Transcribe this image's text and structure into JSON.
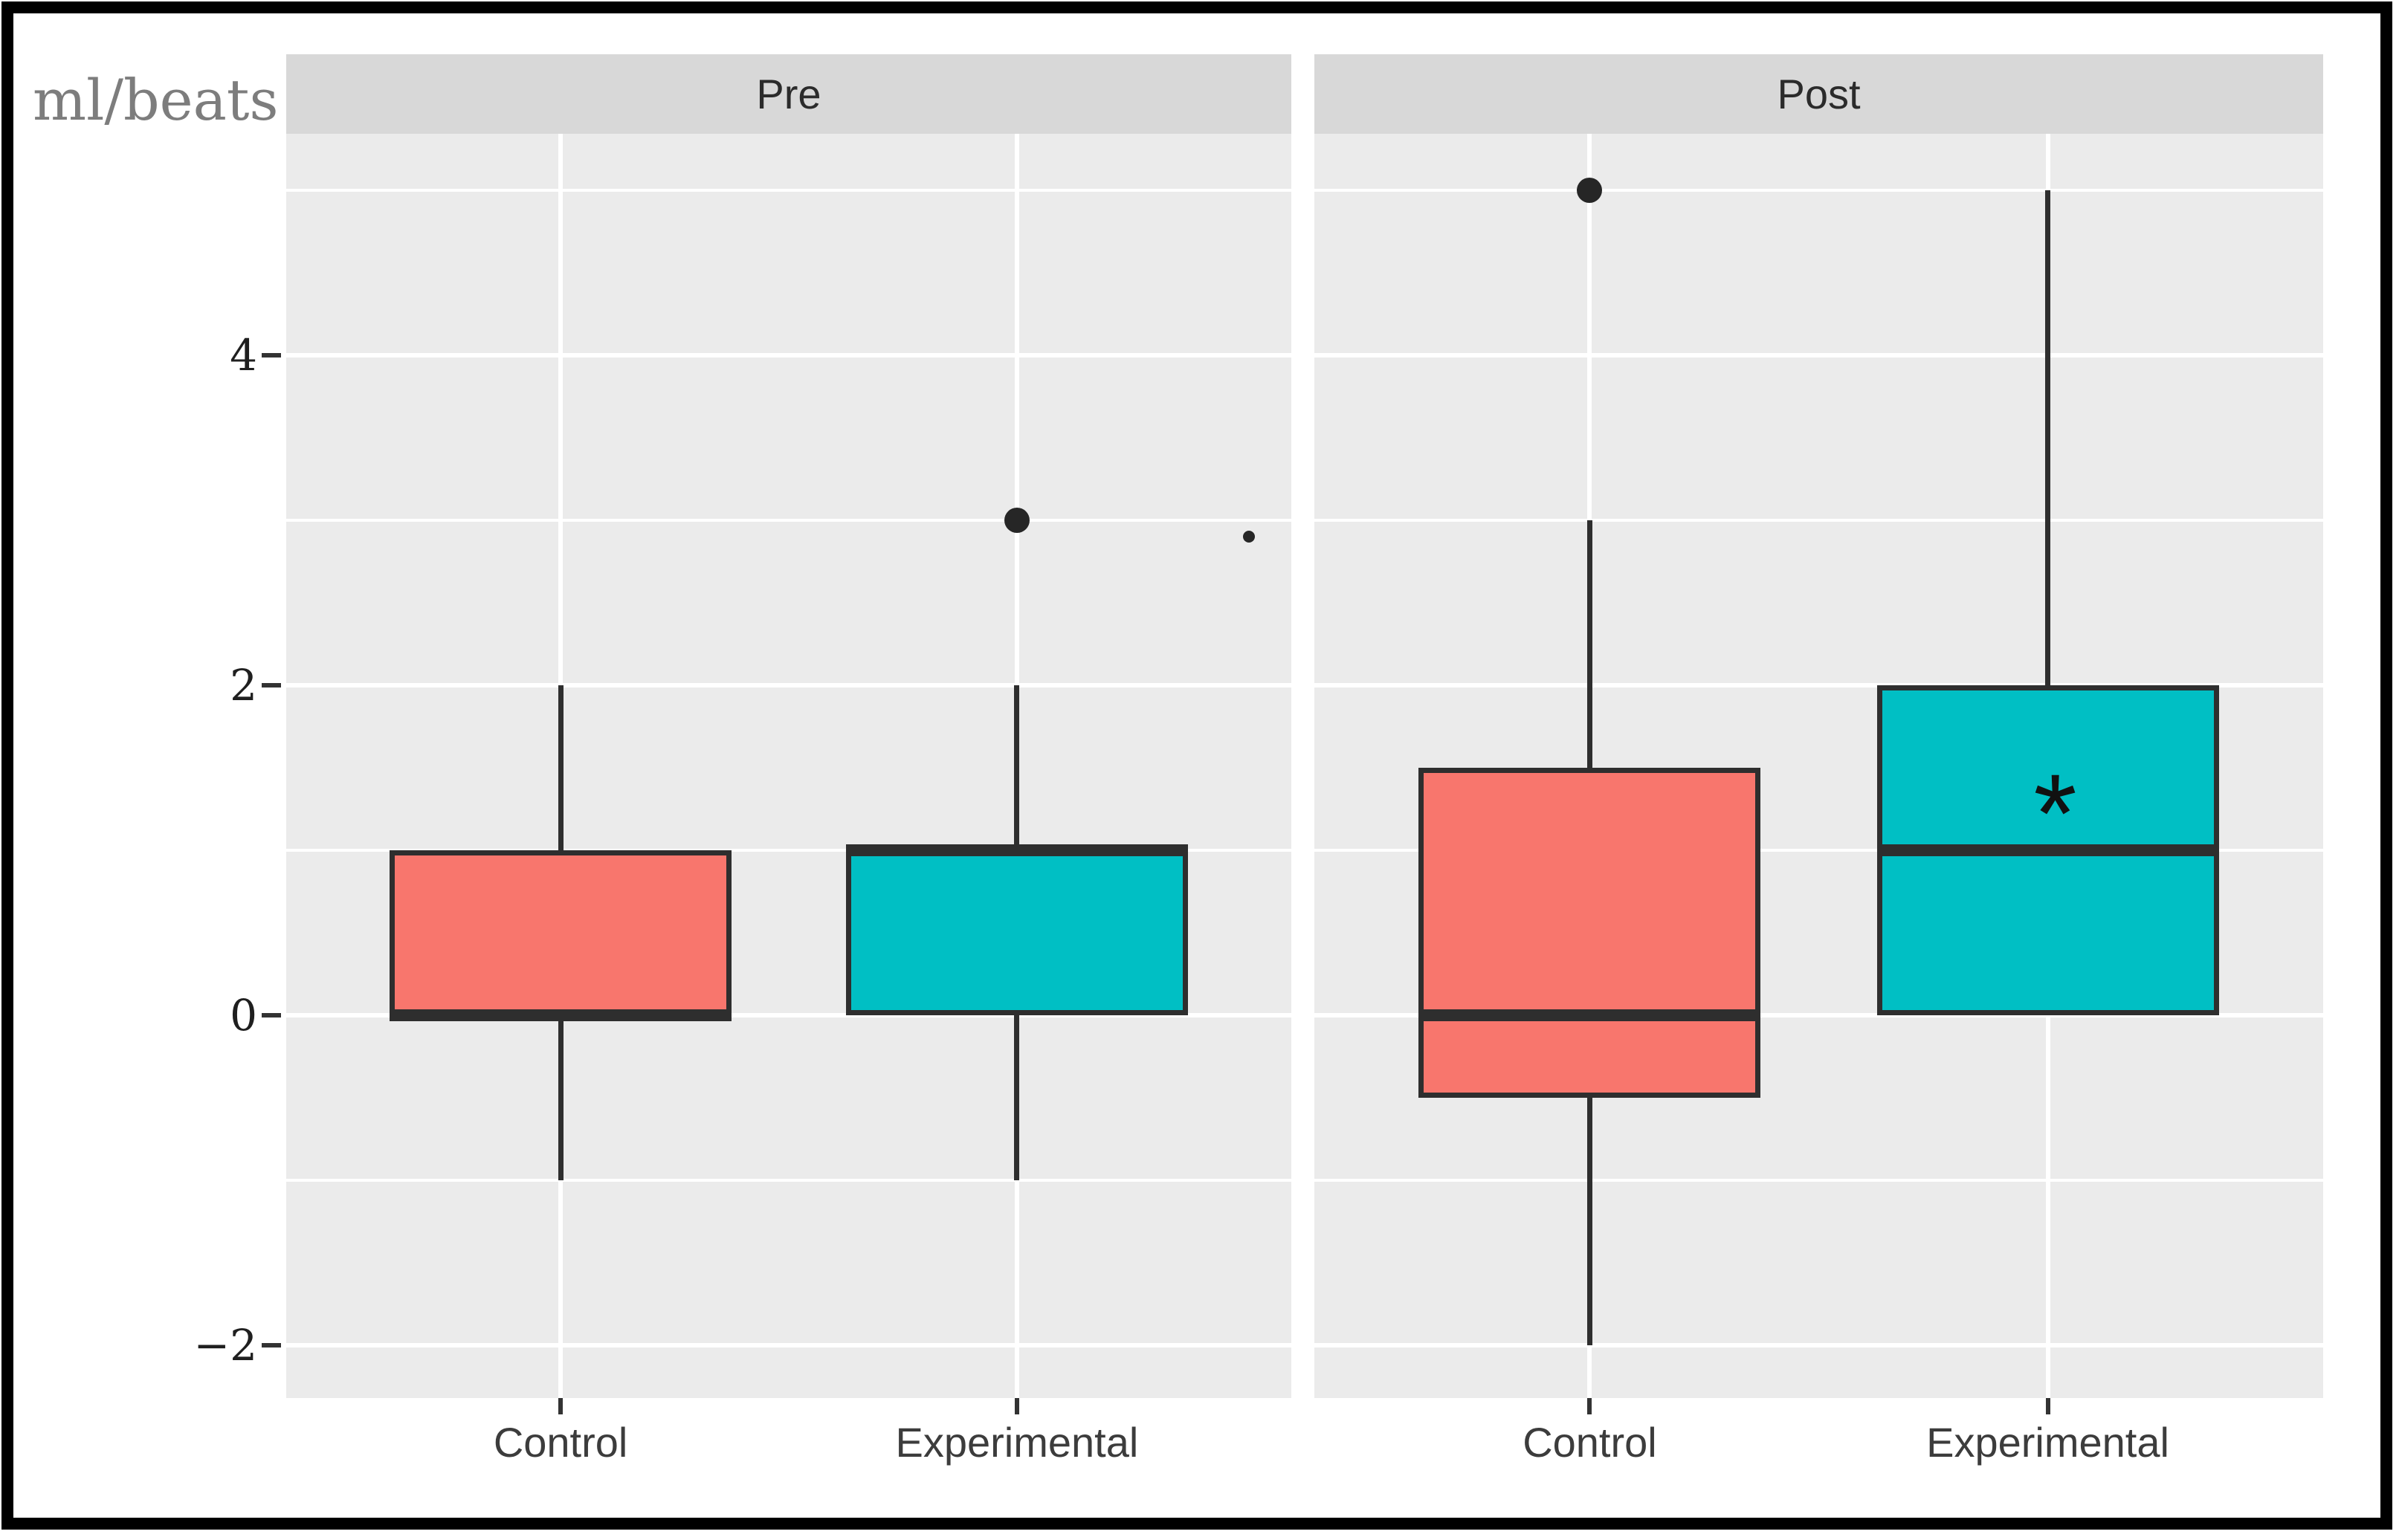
{
  "figure": {
    "unit_label": "ml/beats",
    "background": "#ffffff",
    "border_color": "#000000"
  },
  "style": {
    "panel_bg": "#ebebeb",
    "strip_bg": "#d8d8d8",
    "grid_color": "#ffffff",
    "box_stroke": "#2e2e2e",
    "control_fill": "#f8766d",
    "experimental_fill": "#00bfc4",
    "axis_text_color": "#1f1f1f",
    "label_text_color": "#3c3c3c",
    "strip_text_color": "#2b2b2b",
    "unit_label_color": "#7d7d7d"
  },
  "y_axis": {
    "tick_labels": [
      "4",
      "2",
      "0",
      "−2"
    ],
    "tick_values": [
      4,
      2,
      0,
      -2
    ],
    "minor_values": [
      5,
      3,
      1,
      -1
    ]
  },
  "chart_data": {
    "type": "boxplot",
    "unit": "ml/beats",
    "legend": "none",
    "grid": "on",
    "y_ticks": [
      4,
      2,
      0,
      -2
    ],
    "ylim": [
      -2.35,
      5.35
    ],
    "facets": [
      {
        "label": "Pre",
        "categories": [
          "Control",
          "Experimental"
        ],
        "boxes": [
          {
            "group": "Control",
            "series": "control",
            "q1": 0,
            "median": 0,
            "q3": 1,
            "whisker_low": -1,
            "whisker_high": 2,
            "outliers": []
          },
          {
            "group": "Experimental",
            "series": "experimental",
            "q1": 0,
            "median": 1,
            "q3": 1,
            "whisker_low": -1,
            "whisker_high": 2,
            "outliers": [
              3
            ]
          }
        ],
        "extra_points": [
          {
            "value": 2.9,
            "x_fraction": 0.958,
            "size": "small"
          }
        ]
      },
      {
        "label": "Post",
        "categories": [
          "Control",
          "Experimental"
        ],
        "boxes": [
          {
            "group": "Control",
            "series": "control",
            "q1": -0.5,
            "median": 0,
            "q3": 1.5,
            "whisker_low": -2,
            "whisker_high": 3,
            "outliers": [
              5
            ]
          },
          {
            "group": "Experimental",
            "series": "experimental",
            "q1": 0,
            "median": 1,
            "q3": 2,
            "whisker_low": null,
            "whisker_high": 5,
            "outliers": [],
            "annotation": {
              "text": "*",
              "value": 1.4
            }
          }
        ],
        "extra_points": []
      }
    ]
  }
}
